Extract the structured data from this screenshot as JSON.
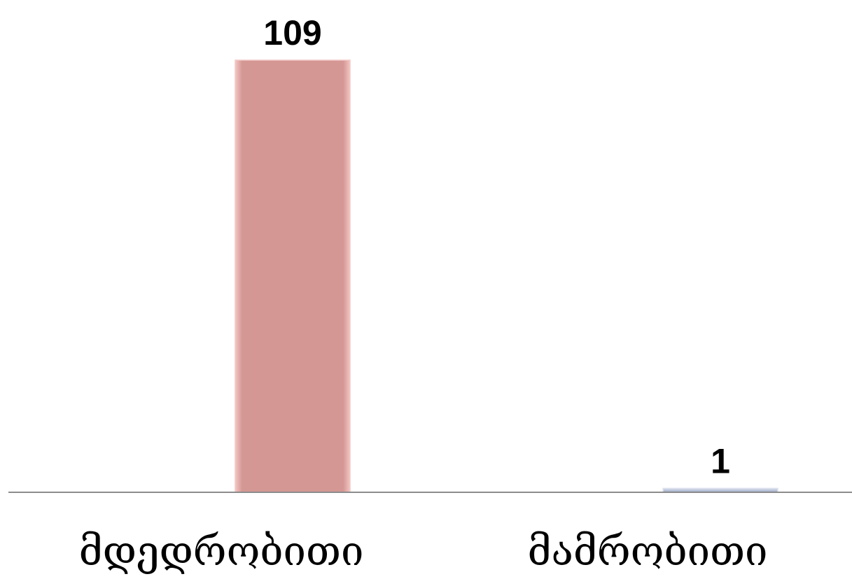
{
  "chart_data": {
    "type": "bar",
    "categories": [
      "მდედრობითი",
      "მამრობითი"
    ],
    "values": [
      109,
      1
    ],
    "ylim": [
      0,
      109
    ],
    "grid": false,
    "series_colors": [
      "#d49794",
      "#b9c3d9"
    ],
    "bar_edge_colors": [
      "#f2c9c6",
      "#dde3ee"
    ],
    "axis_color": "#8c8c8c"
  }
}
